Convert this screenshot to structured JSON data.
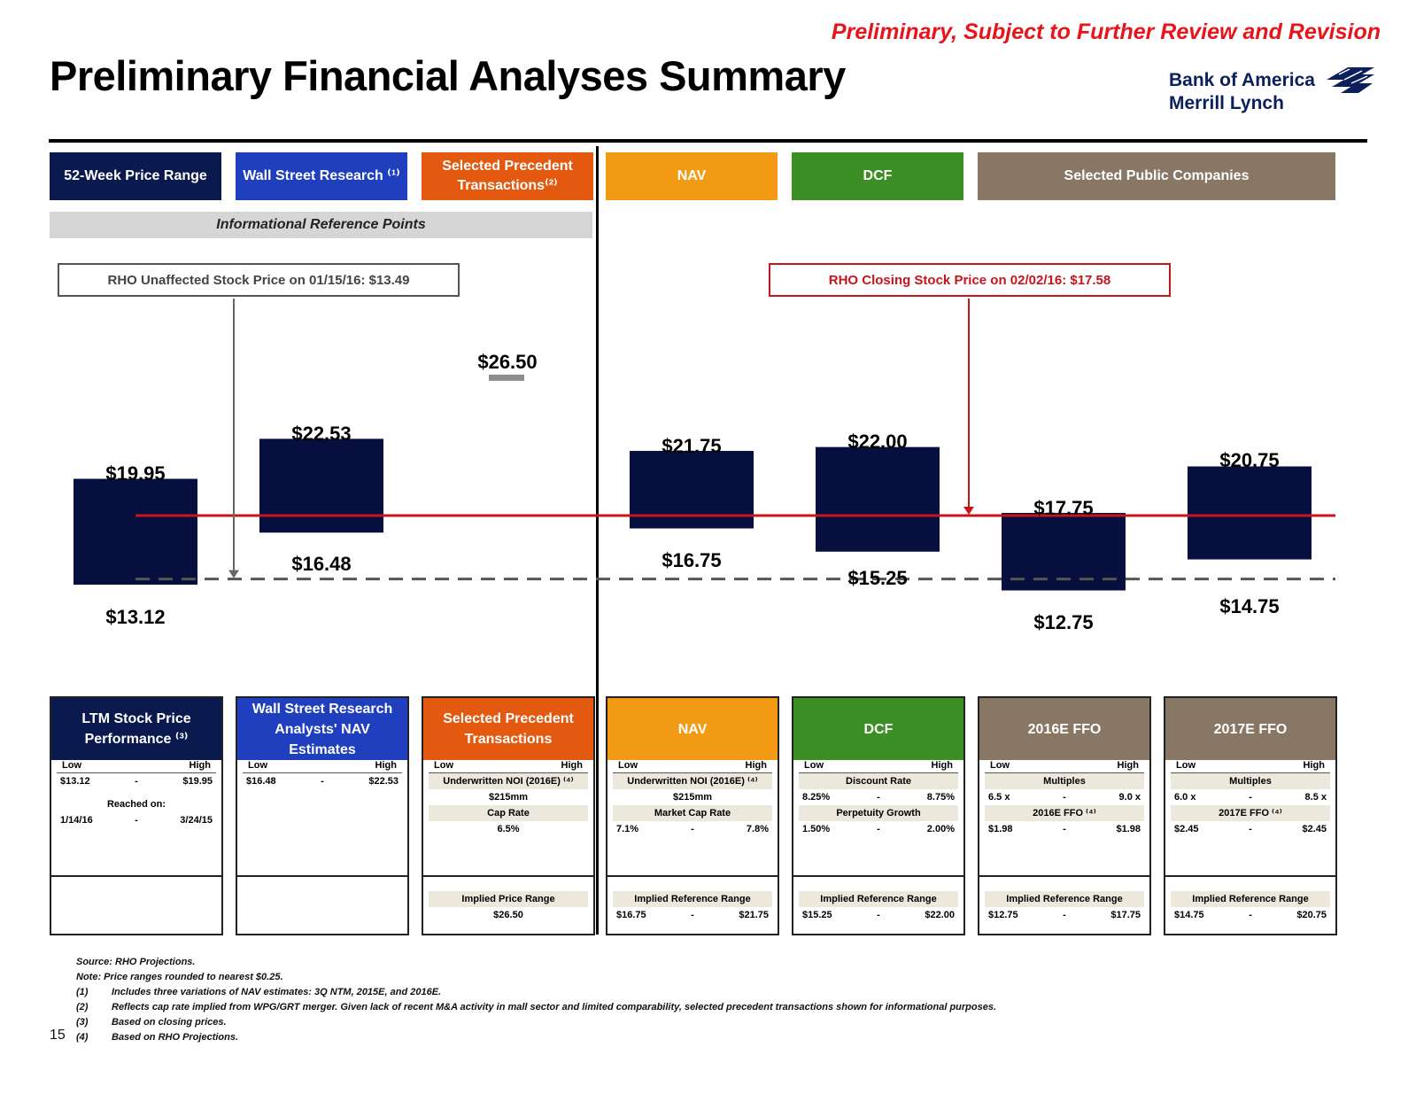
{
  "banner": "Preliminary, Subject to Further Review and Revision",
  "title": "Preliminary Financial Analyses Summary",
  "logo": {
    "line1": "Bank of America",
    "line2": "Merrill Lynch"
  },
  "headers": [
    {
      "label": "52-Week Price Range",
      "color": "#0a1a4e"
    },
    {
      "label": "Wall Street Research ⁽¹⁾",
      "color": "#1f3fbf"
    },
    {
      "label": "Selected Precedent Transactions⁽²⁾",
      "color": "#e35910"
    },
    {
      "label": "NAV",
      "color": "#f39a14"
    },
    {
      "label": "DCF",
      "color": "#3c8f24"
    },
    {
      "label": "Selected Public Companies",
      "color": "#877764"
    }
  ],
  "info_ref_label": "Informational Reference Points",
  "callouts": {
    "unaffected": "RHO Unaffected Stock Price on 01/15/16: $13.49",
    "closing": "RHO Closing Stock Price on 02/02/16: $17.58"
  },
  "chart_data": {
    "type": "bar",
    "subtype": "floating-range",
    "categories": [
      "52-Week Price Range",
      "Wall Street Research",
      "Selected Precedent Transactions",
      "NAV",
      "DCF",
      "2016E FFO",
      "2017E FFO"
    ],
    "series": [
      {
        "low": [
          13.12,
          16.48,
          26.5,
          16.75,
          15.25,
          12.75,
          14.75
        ],
        "high": [
          19.95,
          22.53,
          26.5,
          21.75,
          22.0,
          17.75,
          20.75
        ]
      }
    ],
    "labels_high": [
      "$19.95",
      "$22.53",
      "$26.50",
      "$21.75",
      "$22.00",
      "$17.75",
      "$20.75"
    ],
    "labels_low": [
      "$13.12",
      "$16.48",
      "",
      "$16.75",
      "$15.25",
      "$12.75",
      "$14.75"
    ],
    "reference_lines": [
      {
        "value": 17.58,
        "style": "solid",
        "color": "#c8141b"
      },
      {
        "value": 13.49,
        "style": "dashed",
        "color": "#555555"
      }
    ],
    "bar_color": "#070f3e",
    "point_color": "#8c8c8c",
    "ylim": [
      10,
      28
    ]
  },
  "cards": [
    {
      "title": "LTM Stock Price Performance ⁽³⁾",
      "color": "#0a1a4e",
      "low": "Low",
      "high": "High",
      "r1a": "$13.12",
      "r1b": "$19.95",
      "reached": "Reached on:",
      "r2a": "1/14/16",
      "r2b": "3/24/15"
    },
    {
      "title": "Wall Street Research Analysts' NAV Estimates",
      "color": "#1f3fbf",
      "low": "Low",
      "high": "High",
      "r1a": "$16.48",
      "r1b": "$22.53"
    },
    {
      "title": "Selected Precedent Transactions",
      "color": "#e35910",
      "low": "Low",
      "high": "High",
      "m1": "Underwritten NOI (2016E) ⁽⁴⁾",
      "m1v": "$215mm",
      "m2": "Cap Rate",
      "m2v": "6.5%",
      "impl": "Implied Price Range",
      "implv": "$26.50"
    },
    {
      "title": "NAV",
      "color": "#f39a14",
      "low": "Low",
      "high": "High",
      "m1": "Underwritten NOI (2016E) ⁽⁴⁾",
      "m1v": "$215mm",
      "m2": "Market Cap Rate",
      "m2a": "7.1%",
      "m2b": "7.8%",
      "impl": "Implied Reference Range",
      "ia": "$16.75",
      "ib": "$21.75"
    },
    {
      "title": "DCF",
      "color": "#3c8f24",
      "low": "Low",
      "high": "High",
      "m1": "Discount Rate",
      "m1a": "8.25%",
      "m1b": "8.75%",
      "m2": "Perpetuity Growth",
      "m2a": "1.50%",
      "m2b": "2.00%",
      "impl": "Implied Reference Range",
      "ia": "$15.25",
      "ib": "$22.00"
    },
    {
      "title": "2016E FFO",
      "color": "#877764",
      "low": "Low",
      "high": "High",
      "m1": "Multiples",
      "m1a": "6.5 x",
      "m1b": "9.0 x",
      "m2": "2016E FFO ⁽⁴⁾",
      "m2a": "$1.98",
      "m2b": "$1.98",
      "impl": "Implied Reference Range",
      "ia": "$12.75",
      "ib": "$17.75"
    },
    {
      "title": "2017E FFO",
      "color": "#877764",
      "low": "Low",
      "high": "High",
      "m1": "Multiples",
      "m1a": "6.0 x",
      "m1b": "8.5 x",
      "m2": "2017E FFO ⁽⁴⁾",
      "m2a": "$2.45",
      "m2b": "$2.45",
      "impl": "Implied Reference Range",
      "ia": "$14.75",
      "ib": "$20.75"
    }
  ],
  "dash": "-",
  "notes": {
    "source": "Source: RHO Projections.",
    "note": "Note: Price ranges rounded to nearest $0.25.",
    "f1n": "(1)",
    "f1": "Includes three variations of NAV estimates: 3Q NTM, 2015E, and 2016E.",
    "f2n": "(2)",
    "f2": "Reflects cap rate implied from WPG/GRT merger. Given lack of recent M&A activity in mall sector and limited comparability, selected precedent transactions shown for informational purposes.",
    "f3n": "(3)",
    "f3": "Based on closing prices.",
    "f4n": "(4)",
    "f4": "Based on RHO Projections."
  },
  "page_number": "15"
}
